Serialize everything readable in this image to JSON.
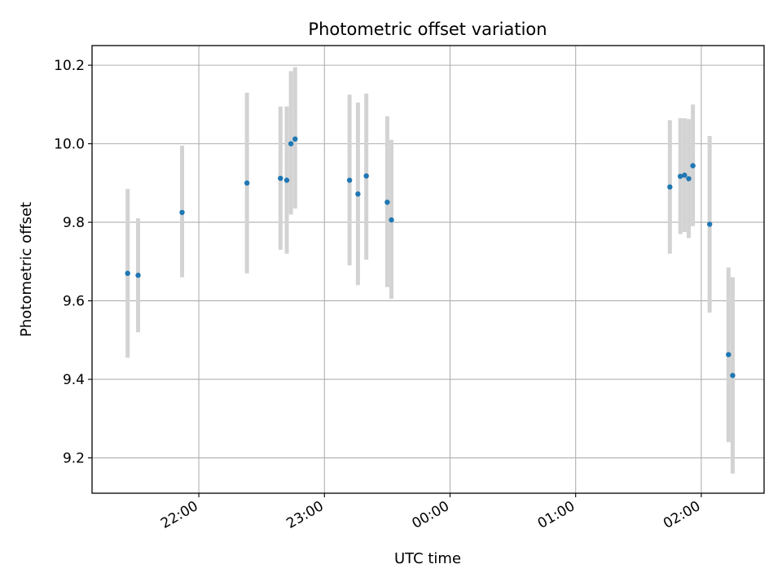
{
  "chart_data": {
    "type": "scatter",
    "title": "Photometric offset variation",
    "xlabel": "UTC time",
    "ylabel": "Photometric offset",
    "x_unit": "time of day, UTC (HH:MM, night spanning midnight)",
    "x_ticks": [
      "22:00",
      "23:00",
      "00:00",
      "01:00",
      "02:00"
    ],
    "y_ticks": [
      "9.2",
      "9.4",
      "9.6",
      "9.8",
      "10.0",
      "10.2"
    ],
    "xlim": [
      "21:09",
      "02:30"
    ],
    "ylim": [
      9.11,
      10.25
    ],
    "grid": true,
    "marker_color": "#1f77b4",
    "errorbar_color": "#d3d3d3",
    "points": [
      {
        "x": "21:26",
        "y": 9.67,
        "yerr_low": 9.455,
        "yerr_high": 9.885
      },
      {
        "x": "21:31",
        "y": 9.665,
        "yerr_low": 9.52,
        "yerr_high": 9.81
      },
      {
        "x": "21:52",
        "y": 9.825,
        "yerr_low": 9.66,
        "yerr_high": 9.995
      },
      {
        "x": "22:23",
        "y": 9.9,
        "yerr_low": 9.67,
        "yerr_high": 10.13
      },
      {
        "x": "22:39",
        "y": 9.912,
        "yerr_low": 9.73,
        "yerr_high": 10.095
      },
      {
        "x": "22:42",
        "y": 9.907,
        "yerr_low": 9.72,
        "yerr_high": 10.095
      },
      {
        "x": "22:44",
        "y": 10.0,
        "yerr_low": 9.82,
        "yerr_high": 10.185
      },
      {
        "x": "22:46",
        "y": 10.012,
        "yerr_low": 9.835,
        "yerr_high": 10.195
      },
      {
        "x": "23:12",
        "y": 9.907,
        "yerr_low": 9.69,
        "yerr_high": 10.125
      },
      {
        "x": "23:16",
        "y": 9.872,
        "yerr_low": 9.64,
        "yerr_high": 10.105
      },
      {
        "x": "23:20",
        "y": 9.918,
        "yerr_low": 9.705,
        "yerr_high": 10.128
      },
      {
        "x": "23:30",
        "y": 9.851,
        "yerr_low": 9.635,
        "yerr_high": 10.07
      },
      {
        "x": "23:32",
        "y": 9.806,
        "yerr_low": 9.605,
        "yerr_high": 10.01
      },
      {
        "x": "01:45",
        "y": 9.89,
        "yerr_low": 9.72,
        "yerr_high": 10.06
      },
      {
        "x": "01:50",
        "y": 9.917,
        "yerr_low": 9.77,
        "yerr_high": 10.065
      },
      {
        "x": "01:52",
        "y": 9.92,
        "yerr_low": 9.775,
        "yerr_high": 10.065
      },
      {
        "x": "01:54",
        "y": 9.911,
        "yerr_low": 9.76,
        "yerr_high": 10.063
      },
      {
        "x": "01:56",
        "y": 9.944,
        "yerr_low": 9.79,
        "yerr_high": 10.1
      },
      {
        "x": "02:04",
        "y": 9.795,
        "yerr_low": 9.57,
        "yerr_high": 10.02
      },
      {
        "x": "02:13",
        "y": 9.463,
        "yerr_low": 9.24,
        "yerr_high": 9.685
      },
      {
        "x": "02:15",
        "y": 9.41,
        "yerr_low": 9.16,
        "yerr_high": 9.66
      }
    ]
  }
}
